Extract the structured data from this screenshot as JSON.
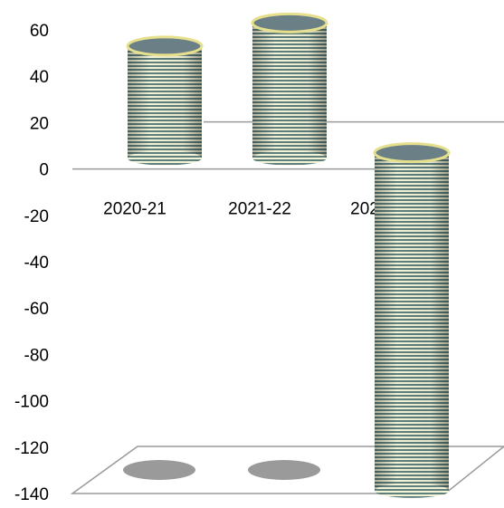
{
  "chart_data": {
    "type": "bar",
    "categories": [
      "2020-21",
      "2021-22",
      "2022-23"
    ],
    "values": [
      53,
      63,
      -138
    ],
    "ylim": [
      -140,
      60
    ],
    "yticks": [
      60,
      40,
      20,
      0,
      -20,
      -40,
      -60,
      -80,
      -100,
      -120,
      -140
    ],
    "title": "",
    "xlabel": "",
    "ylabel": "",
    "grid": false,
    "legend": "none"
  },
  "colors": {
    "bar_stripe_a": "#5f7f7c",
    "bar_stripe_b": "#f2f3d8",
    "bar_top_fill": "#6b7f86",
    "bar_top_rim": "#e6e08e",
    "floor_line": "#9a9a9a",
    "shadow": "#9a9a9a"
  }
}
